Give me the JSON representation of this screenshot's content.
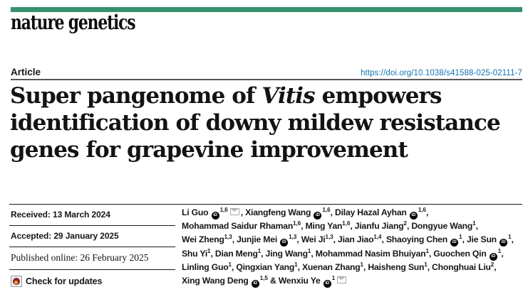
{
  "journal": {
    "masthead": "nature genetics"
  },
  "colors": {
    "accent": "#35916E",
    "link_blue": "#1173B6",
    "header_rule": "#58585A",
    "text": "#161616"
  },
  "icons": {
    "orcid": "orcid-icon",
    "email": "email-icon",
    "crossmark": "crossmark-icon"
  },
  "header": {
    "section_label": "Article",
    "doi": "https://doi.org/10.1038/s41588-025-02111-7"
  },
  "title": {
    "lines": [
      [
        {
          "t": "text",
          "v": "Super pangenome of "
        },
        {
          "t": "i",
          "v": "Vitis"
        },
        {
          "t": "text",
          "v": " empowers"
        }
      ],
      [
        {
          "t": "text",
          "v": "identification of downy mildew resistance"
        }
      ],
      [
        {
          "t": "text",
          "v": "genes for grapevine improvement"
        }
      ]
    ]
  },
  "history": {
    "items": [
      {
        "text": "Received: 13 March 2024",
        "style": "sans"
      },
      {
        "text": "Accepted: 29 January 2025",
        "style": "sans"
      },
      {
        "text": "Published online: 26 February 2025",
        "style": "serif"
      }
    ],
    "check_label": "Check for updates"
  },
  "authors": {
    "orcid_glyph": "iD",
    "lines": [
      [
        {
          "t": "text",
          "v": "Li Guo "
        },
        {
          "t": "orcid"
        },
        {
          "t": "sup",
          "v": "1,6"
        },
        {
          "t": "mail"
        },
        {
          "t": "text",
          "v": ", Xiangfeng Wang "
        },
        {
          "t": "orcid"
        },
        {
          "t": "sup",
          "v": "1,6"
        },
        {
          "t": "text",
          "v": ", Dilay Hazal Ayhan "
        },
        {
          "t": "orcid"
        },
        {
          "t": "sup",
          "v": "1,6"
        },
        {
          "t": "text",
          "v": ","
        }
      ],
      [
        {
          "t": "text",
          "v": "Mohammad Saidur Rhaman"
        },
        {
          "t": "sup",
          "v": "1,6"
        },
        {
          "t": "text",
          "v": ", Ming Yan"
        },
        {
          "t": "sup",
          "v": "1,6"
        },
        {
          "t": "text",
          "v": ", Jianfu Jiang"
        },
        {
          "t": "sup",
          "v": "2"
        },
        {
          "t": "text",
          "v": ", Dongyue Wang"
        },
        {
          "t": "sup",
          "v": "1"
        },
        {
          "t": "text",
          "v": ","
        }
      ],
      [
        {
          "t": "text",
          "v": "Wei Zheng"
        },
        {
          "t": "sup",
          "v": "1,3"
        },
        {
          "t": "text",
          "v": ", Junjie Mei "
        },
        {
          "t": "orcid"
        },
        {
          "t": "sup",
          "v": "1,3"
        },
        {
          "t": "text",
          "v": ", Wei Ji"
        },
        {
          "t": "sup",
          "v": "1,3"
        },
        {
          "t": "text",
          "v": ", Jian Jiao"
        },
        {
          "t": "sup",
          "v": "1,4"
        },
        {
          "t": "text",
          "v": ", Shaoying Chen "
        },
        {
          "t": "orcid"
        },
        {
          "t": "sup",
          "v": "1"
        },
        {
          "t": "text",
          "v": ", Jie Sun "
        },
        {
          "t": "orcid"
        },
        {
          "t": "sup",
          "v": "1"
        },
        {
          "t": "text",
          "v": ","
        }
      ],
      [
        {
          "t": "text",
          "v": "Shu Yi"
        },
        {
          "t": "sup",
          "v": "1"
        },
        {
          "t": "text",
          "v": ", Dian Meng"
        },
        {
          "t": "sup",
          "v": "1"
        },
        {
          "t": "text",
          "v": ", Jing Wang"
        },
        {
          "t": "sup",
          "v": "1"
        },
        {
          "t": "text",
          "v": ", Mohammad Nasim Bhuiyan"
        },
        {
          "t": "sup",
          "v": "1"
        },
        {
          "t": "text",
          "v": ", Guochen Qin "
        },
        {
          "t": "orcid"
        },
        {
          "t": "sup",
          "v": "1"
        },
        {
          "t": "text",
          "v": ","
        }
      ],
      [
        {
          "t": "text",
          "v": "Linling Guo"
        },
        {
          "t": "sup",
          "v": "1"
        },
        {
          "t": "text",
          "v": ", Qingxian Yang"
        },
        {
          "t": "sup",
          "v": "1"
        },
        {
          "t": "text",
          "v": ", Xuenan Zhang"
        },
        {
          "t": "sup",
          "v": "1"
        },
        {
          "t": "text",
          "v": ", Haisheng Sun"
        },
        {
          "t": "sup",
          "v": "1"
        },
        {
          "t": "text",
          "v": ", Chonghuai Liu"
        },
        {
          "t": "sup",
          "v": "2"
        },
        {
          "t": "text",
          "v": ","
        }
      ],
      [
        {
          "t": "text",
          "v": "Xing Wang Deng "
        },
        {
          "t": "orcid"
        },
        {
          "t": "sup",
          "v": "1,5"
        },
        {
          "t": "text",
          "v": " & Wenxiu Ye "
        },
        {
          "t": "orcid"
        },
        {
          "t": "sup",
          "v": "1"
        },
        {
          "t": "mail"
        }
      ]
    ]
  }
}
